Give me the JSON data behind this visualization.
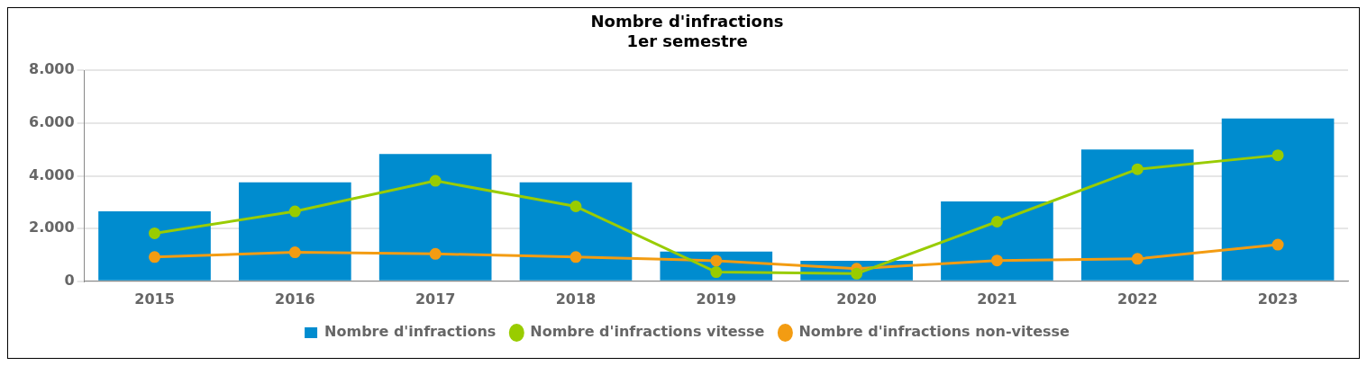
{
  "chart_data": {
    "type": "bar",
    "title": "Nombre d'infractions\n1er semestre",
    "categories": [
      "2015",
      "2016",
      "2017",
      "2018",
      "2019",
      "2020",
      "2021",
      "2022",
      "2023"
    ],
    "series": [
      {
        "name": "Nombre d'infractions",
        "color": "#008ccf",
        "values": [
          2650,
          3750,
          4830,
          3750,
          1130,
          780,
          3030,
          5000,
          6170
        ]
      },
      {
        "name": "Nombre d'infractions vitesse",
        "type": "line",
        "color": "#99cc00",
        "values": [
          1820,
          2650,
          3810,
          2840,
          350,
          290,
          2260,
          4250,
          4780
        ]
      },
      {
        "name": "Nombre d'infractions non-vitesse",
        "type": "line",
        "color": "#f39c12",
        "values": [
          920,
          1100,
          1040,
          920,
          780,
          480,
          790,
          850,
          1390
        ]
      }
    ],
    "ylim": [
      0,
      8000
    ],
    "yticks": [
      {
        "value": 0,
        "label": "0"
      },
      {
        "value": 2000,
        "label": "2.000"
      },
      {
        "value": 4000,
        "label": "4.000"
      },
      {
        "value": 6000,
        "label": "6.000"
      },
      {
        "value": 8000,
        "label": "8.000"
      }
    ],
    "grid": "y",
    "legend": "bottom",
    "marker": "circle",
    "line_style": "solid"
  }
}
